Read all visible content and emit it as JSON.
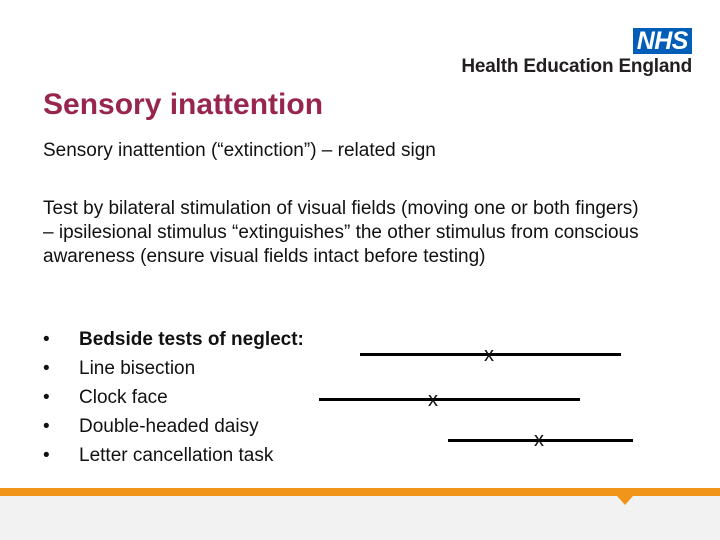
{
  "logo": {
    "badge": "NHS",
    "organisation": "Health Education England"
  },
  "slide": {
    "title": "Sensory inattention",
    "subtitle": "Sensory inattention (“extinction”) – related sign",
    "paragraph": "Test by bilateral stimulation of visual fields (moving one or both fingers) – ipsilesional stimulus “extinguishes” the other stimulus from conscious awareness (ensure visual fields intact before testing)",
    "bullets": {
      "marker": "•",
      "heading": "Bedside tests of neglect:",
      "items": [
        "Line bisection",
        "Clock face",
        "Double-headed daisy",
        "Letter cancellation task"
      ]
    },
    "bisection_figure": {
      "mark": "x"
    }
  },
  "colors": {
    "title": "#98254e",
    "nhs_blue": "#005eb8",
    "footer_orange": "#f0951a",
    "footer_grey": "#f2f2f2"
  }
}
